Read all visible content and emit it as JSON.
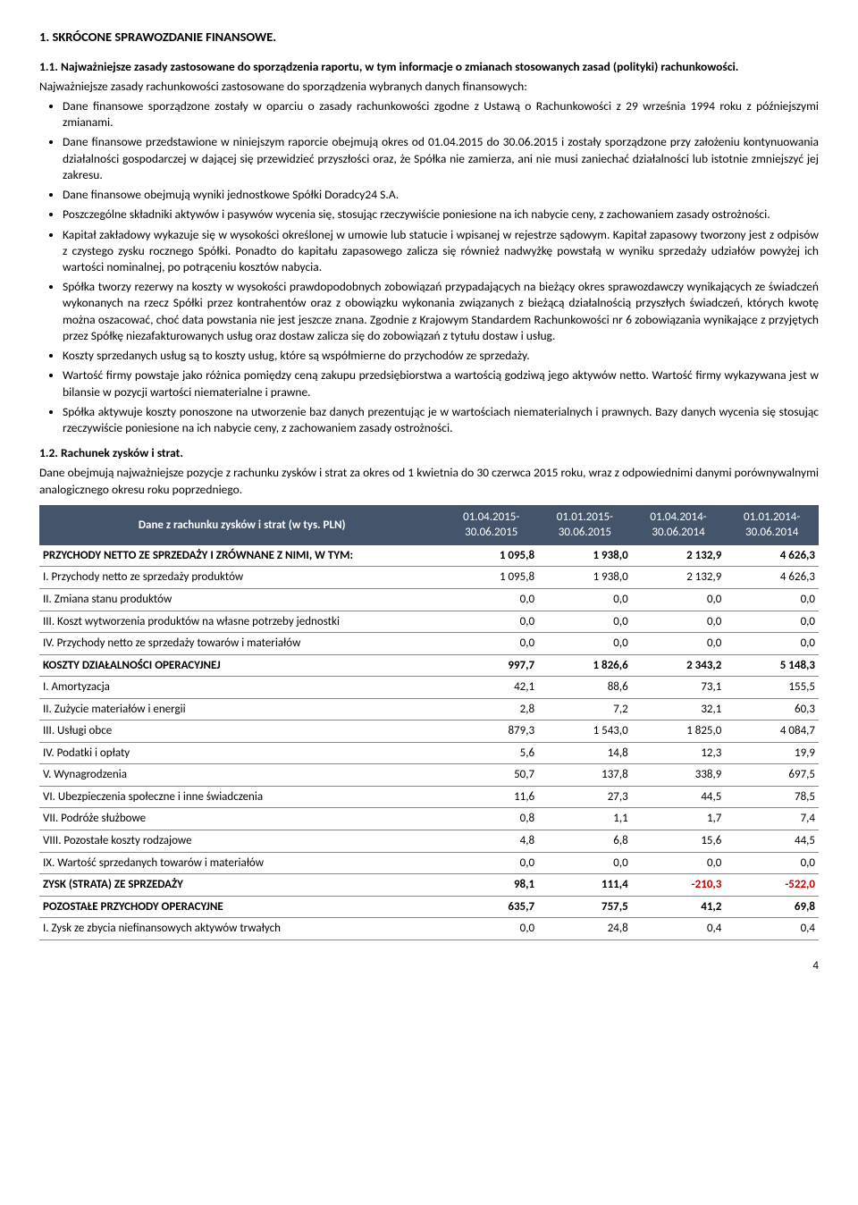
{
  "heading_main": "1. SKRÓCONE SPRAWOZDANIE FINANSOWE.",
  "heading_11": "1.1. Najważniejsze zasady zastosowane do sporządzenia raportu, w tym informacje o zmianach stosowanych zasad (polityki) rachunkowości.",
  "para_intro": "Najważniejsze zasady rachunkowości zastosowane do sporządzenia wybranych danych finansowych:",
  "bullets_top": [
    "Dane finansowe sporządzone zostały w oparciu o zasady rachunkowości zgodne z Ustawą o Rachunkowości z 29 września 1994 roku z późniejszymi zmianami.",
    "Dane finansowe przedstawione w niniejszym raporcie obejmują okres od 01.04.2015 do 30.06.2015 i zostały sporządzone przy założeniu kontynuowania działalności gospodarczej w dającej się przewidzieć przyszłości oraz, że Spółka nie zamierza, ani nie musi zaniechać działalności lub istotnie zmniejszyć jej zakresu.",
    "Dane finansowe obejmują wyniki jednostkowe Spółki Doradcy24 S.A.",
    "Poszczególne składniki aktywów i pasywów wycenia się, stosując rzeczywiście poniesione na ich nabycie ceny, z zachowaniem zasady ostrożności.",
    "Kapitał zakładowy wykazuje się w wysokości określonej w umowie lub statucie i wpisanej w rejestrze sądowym. Kapitał zapasowy tworzony jest z odpisów z czystego zysku rocznego Spółki. Ponadto do kapitału zapasowego zalicza się również nadwyżkę powstałą w wyniku sprzedaży udziałów powyżej ich wartości nominalnej, po potrąceniu kosztów nabycia.",
    "Spółka tworzy rezerwy na koszty w wysokości prawdopodobnych zobowiązań przypadających na bieżący okres sprawozdawczy wynikających ze świadczeń wykonanych na rzecz Spółki przez kontrahentów oraz z obowiązku wykonania związanych z bieżącą działalnością przyszłych świadczeń, których kwotę można oszacować, choć data powstania nie jest jeszcze znana. Zgodnie z Krajowym Standardem Rachunkowości nr 6 zobowiązania wynikające z przyjętych przez Spółkę niezafakturowanych usług oraz dostaw zalicza się do zobowiązań z tytułu dostaw i usług.",
    "Koszty sprzedanych usług są to koszty usług, które są współmierne do przychodów ze sprzedaży.",
    "Wartość firmy powstaje jako różnica pomiędzy ceną zakupu przedsiębiorstwa a wartością godziwą jego aktywów netto. Wartość firmy wykazywana jest w bilansie w pozycji wartości niematerialne i prawne.",
    "Spółka aktywuje koszty ponoszone na utworzenie baz danych prezentując je w wartościach niematerialnych i prawnych. Bazy danych wycenia się stosując rzeczywiście poniesione na ich nabycie ceny, z zachowaniem zasady ostrożności."
  ],
  "heading_12": "1.2. Rachunek zysków i strat.",
  "para_12": "Dane obejmują najważniejsze pozycje z rachunku zysków i strat za okres od 1 kwietnia do 30 czerwca 2015 roku, wraz z odpowiednimi danymi porównywalnymi analogicznego okresu roku poprzedniego.",
  "table": {
    "header_label": "Dane z rachunku zysków i strat  (w tys. PLN)",
    "periods": [
      "01.04.2015-30.06.2015",
      "01.01.2015-30.06.2015",
      "01.04.2014-30.06.2014",
      "01.01.2014-30.06.2014"
    ],
    "rows": [
      {
        "label": "PRZYCHODY NETTO ZE SPRZEDAŻY I ZRÓWNANE Z NIMI, W TYM:",
        "v": [
          "1 095,8",
          "1 938,0",
          "2 132,9",
          "4 626,3"
        ],
        "bold": true
      },
      {
        "label": "I. Przychody netto ze sprzedaży produktów",
        "v": [
          "1 095,8",
          "1 938,0",
          "2 132,9",
          "4 626,3"
        ]
      },
      {
        "label": "II. Zmiana stanu produktów",
        "v": [
          "0,0",
          "0,0",
          "0,0",
          "0,0"
        ]
      },
      {
        "label": "III. Koszt wytworzenia produktów na własne potrzeby jednostki",
        "v": [
          "0,0",
          "0,0",
          "0,0",
          "0,0"
        ]
      },
      {
        "label": "IV. Przychody netto ze sprzedaży towarów i materiałów",
        "v": [
          "0,0",
          "0,0",
          "0,0",
          "0,0"
        ]
      },
      {
        "label": "KOSZTY DZIAŁALNOŚCI OPERACYJNEJ",
        "v": [
          "997,7",
          "1 826,6",
          "2 343,2",
          "5 148,3"
        ],
        "bold": true
      },
      {
        "label": "I. Amortyzacja",
        "v": [
          "42,1",
          "88,6",
          "73,1",
          "155,5"
        ]
      },
      {
        "label": "II. Zużycie materiałów i energii",
        "v": [
          "2,8",
          "7,2",
          "32,1",
          "60,3"
        ]
      },
      {
        "label": "III. Usługi obce",
        "v": [
          "879,3",
          "1 543,0",
          "1 825,0",
          "4 084,7"
        ]
      },
      {
        "label": "IV. Podatki i opłaty",
        "v": [
          "5,6",
          "14,8",
          "12,3",
          "19,9"
        ]
      },
      {
        "label": "V. Wynagrodzenia",
        "v": [
          "50,7",
          "137,8",
          "338,9",
          "697,5"
        ]
      },
      {
        "label": "VI. Ubezpieczenia społeczne i inne świadczenia",
        "v": [
          "11,6",
          "27,3",
          "44,5",
          "78,5"
        ]
      },
      {
        "label": "VII. Podróże służbowe",
        "v": [
          "0,8",
          "1,1",
          "1,7",
          "7,4"
        ]
      },
      {
        "label": "VIII. Pozostałe koszty rodzajowe",
        "v": [
          "4,8",
          "6,8",
          "15,6",
          "44,5"
        ]
      },
      {
        "label": "IX. Wartość sprzedanych towarów i materiałów",
        "v": [
          "0,0",
          "0,0",
          "0,0",
          "0,0"
        ]
      },
      {
        "label": "ZYSK (STRATA) ZE SPRZEDAŻY",
        "v": [
          "98,1",
          "111,4",
          "-210,3",
          "-522,0"
        ],
        "bold": true,
        "neg": [
          false,
          false,
          true,
          true
        ]
      },
      {
        "label": "POZOSTAŁE PRZYCHODY OPERACYJNE",
        "v": [
          "635,7",
          "757,5",
          "41,2",
          "69,8"
        ],
        "bold": true
      },
      {
        "label": "I. Zysk ze zbycia niefinansowych aktywów trwałych",
        "v": [
          "0,0",
          "24,8",
          "0,4",
          "0,4"
        ]
      }
    ]
  },
  "page_number": "4"
}
